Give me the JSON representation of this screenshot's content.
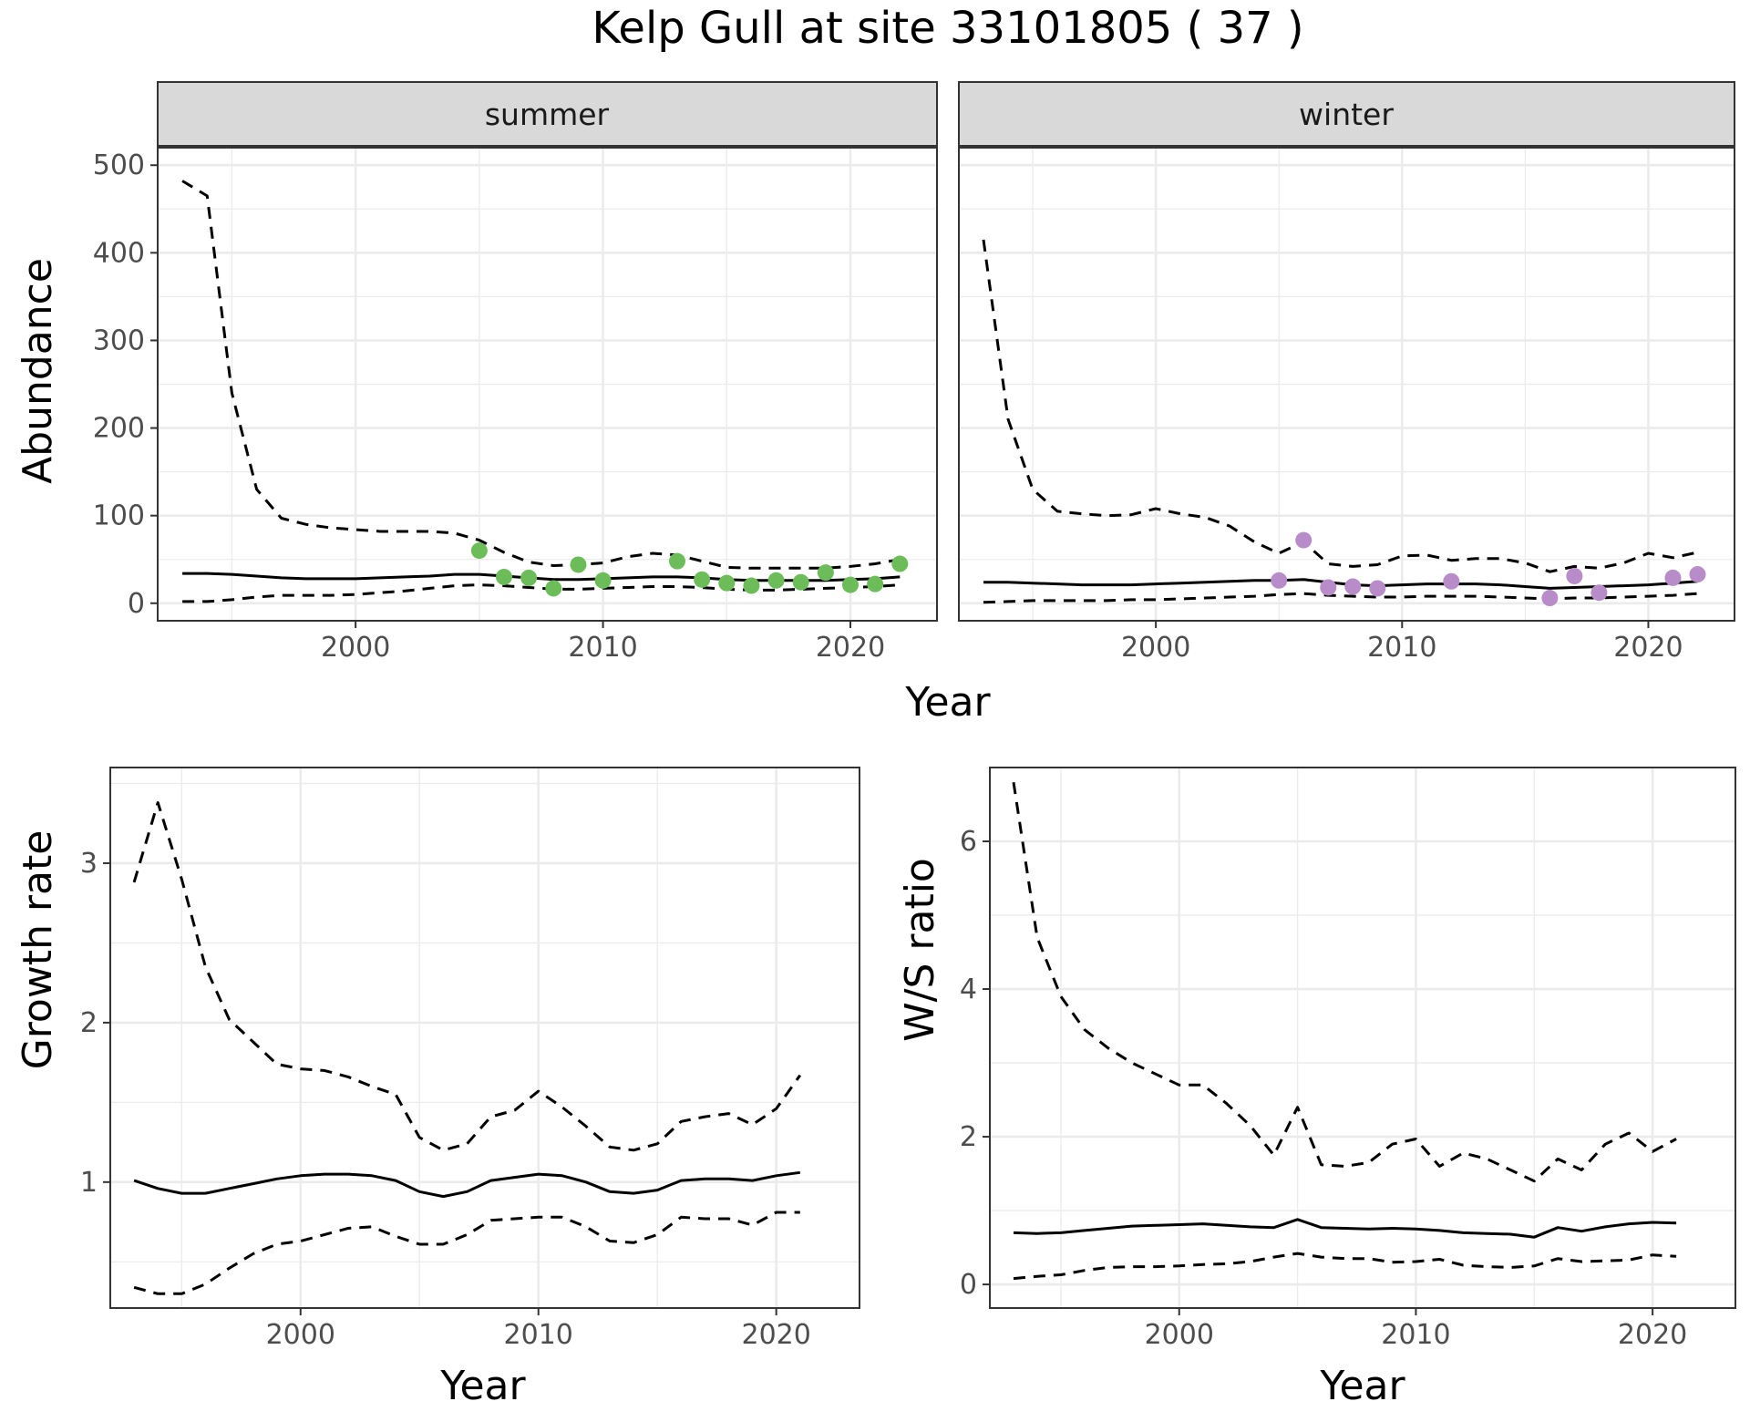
{
  "figure": {
    "title": "Kelp Gull at site 33101805 ( 37 )"
  },
  "colors": {
    "summer_points": "#6cbd5a",
    "winter_points": "#b78cc8",
    "lines": "#000000"
  },
  "chart_data": [
    {
      "type": "line",
      "panel": "summer",
      "strip_label": "summer",
      "xlabel": "Year",
      "ylabel": "Abundance",
      "xlim": [
        1992,
        2023.5
      ],
      "ylim": [
        -20,
        520
      ],
      "x_ticks": [
        2000,
        2010,
        2020
      ],
      "y_ticks": [
        0,
        100,
        200,
        300,
        400,
        500
      ],
      "grid": true,
      "line_styles": {
        "lower": "dashed",
        "mid": "solid",
        "upper": "dashed"
      },
      "x": [
        1993,
        1994,
        1995,
        1996,
        1997,
        1998,
        1999,
        2000,
        2001,
        2002,
        2003,
        2004,
        2005,
        2006,
        2007,
        2008,
        2009,
        2010,
        2011,
        2012,
        2013,
        2014,
        2015,
        2016,
        2017,
        2018,
        2019,
        2020,
        2021,
        2022
      ],
      "series": [
        {
          "values": [
            482,
            465,
            240,
            130,
            97,
            90,
            86,
            84,
            82,
            82,
            82,
            80,
            72,
            58,
            47,
            43,
            44,
            46,
            53,
            57,
            55,
            48,
            41,
            40,
            40,
            40,
            40,
            42,
            45,
            50
          ]
        },
        {
          "values": [
            34,
            34,
            33,
            31,
            29,
            28,
            28,
            28,
            29,
            30,
            31,
            33,
            33,
            31,
            29,
            27,
            27,
            28,
            29,
            30,
            30,
            29,
            27,
            26,
            26,
            26,
            26,
            27,
            28,
            30
          ]
        },
        {
          "values": [
            2,
            2,
            4,
            7,
            9,
            9,
            9,
            10,
            12,
            14,
            17,
            20,
            21,
            20,
            18,
            16,
            16,
            17,
            18,
            19,
            19,
            18,
            16,
            15,
            15,
            16,
            17,
            18,
            19,
            21
          ]
        },
        {
          "name": "",
          "points_x": [
            2005,
            2006,
            2007,
            2008,
            2009,
            2010,
            2013,
            2014,
            2015,
            2016,
            2017,
            2018,
            2019,
            2020,
            2021,
            2022
          ],
          "points_y": [
            60,
            30,
            29,
            17,
            44,
            26,
            48,
            27,
            23,
            20,
            26,
            24,
            35,
            21,
            22,
            45
          ]
        }
      ]
    },
    {
      "type": "line",
      "panel": "winter",
      "strip_label": "winter",
      "xlabel": "Year",
      "ylabel": "Abundance",
      "xlim": [
        1992,
        2023.5
      ],
      "ylim": [
        -20,
        520
      ],
      "x_ticks": [
        2000,
        2010,
        2020
      ],
      "y_ticks": [
        0,
        100,
        200,
        300,
        400,
        500
      ],
      "grid": true,
      "line_styles": {
        "lower": "dashed",
        "mid": "solid",
        "upper": "dashed"
      },
      "x": [
        1993,
        1994,
        1995,
        1996,
        1997,
        1998,
        1999,
        2000,
        2001,
        2002,
        2003,
        2004,
        2005,
        2006,
        2007,
        2008,
        2009,
        2010,
        2011,
        2012,
        2013,
        2014,
        2015,
        2016,
        2017,
        2018,
        2019,
        2020,
        2021,
        2022
      ],
      "series": [
        {
          "values": [
            415,
            210,
            130,
            105,
            102,
            100,
            101,
            108,
            102,
            98,
            88,
            70,
            57,
            70,
            45,
            42,
            44,
            54,
            55,
            49,
            51,
            51,
            46,
            36,
            42,
            40,
            46,
            57,
            52,
            58
          ]
        },
        {
          "values": [
            24,
            24,
            23,
            22,
            21,
            21,
            21,
            22,
            23,
            24,
            25,
            26,
            26,
            27,
            24,
            21,
            20,
            21,
            22,
            22,
            22,
            21,
            19,
            17,
            18,
            19,
            20,
            21,
            23,
            25
          ]
        },
        {
          "values": [
            1,
            2,
            3,
            3,
            3,
            3,
            4,
            4,
            5,
            6,
            7,
            8,
            10,
            11,
            9,
            8,
            7,
            7,
            8,
            8,
            8,
            7,
            6,
            5,
            6,
            6,
            7,
            8,
            9,
            11
          ]
        },
        {
          "name": "",
          "points_x": [
            2005,
            2006,
            2007,
            2008,
            2009,
            2012,
            2016,
            2017,
            2018,
            2021,
            2022
          ],
          "points_y": [
            26,
            72,
            18,
            19,
            17,
            25,
            6,
            31,
            12,
            29,
            33
          ]
        }
      ]
    },
    {
      "type": "line",
      "panel": "growth",
      "xlabel": "Year",
      "ylabel": "Growth rate",
      "xlim": [
        1992,
        2023.5
      ],
      "ylim": [
        0.21,
        3.6
      ],
      "x_ticks": [
        2000,
        2010,
        2020
      ],
      "y_ticks": [
        1,
        2,
        3
      ],
      "grid": true,
      "line_styles": {
        "lower": "dashed",
        "mid": "solid",
        "upper": "dashed"
      },
      "x": [
        1993,
        1994,
        1995,
        1996,
        1997,
        1998,
        1999,
        2000,
        2001,
        2002,
        2003,
        2004,
        2005,
        2006,
        2007,
        2008,
        2009,
        2010,
        2011,
        2012,
        2013,
        2014,
        2015,
        2016,
        2017,
        2018,
        2019,
        2020,
        2021
      ],
      "series": [
        {
          "values": [
            2.88,
            3.38,
            2.9,
            2.35,
            2.02,
            1.88,
            1.74,
            1.71,
            1.7,
            1.66,
            1.6,
            1.55,
            1.28,
            1.2,
            1.24,
            1.41,
            1.45,
            1.57,
            1.47,
            1.35,
            1.22,
            1.2,
            1.24,
            1.38,
            1.41,
            1.43,
            1.36,
            1.46,
            1.67
          ]
        },
        {
          "values": [
            1.01,
            0.96,
            0.93,
            0.93,
            0.96,
            0.99,
            1.02,
            1.04,
            1.05,
            1.05,
            1.04,
            1.01,
            0.94,
            0.91,
            0.94,
            1.01,
            1.03,
            1.05,
            1.04,
            1.0,
            0.94,
            0.93,
            0.95,
            1.01,
            1.02,
            1.02,
            1.01,
            1.04,
            1.06
          ]
        },
        {
          "values": [
            0.34,
            0.3,
            0.3,
            0.36,
            0.46,
            0.55,
            0.61,
            0.63,
            0.67,
            0.71,
            0.72,
            0.66,
            0.61,
            0.61,
            0.67,
            0.76,
            0.77,
            0.78,
            0.78,
            0.72,
            0.63,
            0.62,
            0.67,
            0.78,
            0.77,
            0.77,
            0.73,
            0.81,
            0.81
          ]
        }
      ]
    },
    {
      "type": "line",
      "panel": "ratio",
      "xlabel": "Year",
      "ylabel": "W/S ratio",
      "xlim": [
        1992,
        2023.5
      ],
      "ylim": [
        -0.32,
        7.0
      ],
      "x_ticks": [
        2000,
        2010,
        2020
      ],
      "y_ticks": [
        0,
        2,
        4,
        6
      ],
      "grid": true,
      "line_styles": {
        "lower": "dashed",
        "mid": "solid",
        "upper": "dashed"
      },
      "x": [
        1993,
        1994,
        1995,
        1996,
        1997,
        1998,
        1999,
        2000,
        2001,
        2002,
        2003,
        2004,
        2005,
        2006,
        2007,
        2008,
        2009,
        2010,
        2011,
        2012,
        2013,
        2014,
        2015,
        2016,
        2017,
        2018,
        2019,
        2020,
        2021
      ],
      "series": [
        {
          "values": [
            6.8,
            4.7,
            3.9,
            3.45,
            3.2,
            3.0,
            2.85,
            2.7,
            2.7,
            2.45,
            2.15,
            1.75,
            2.4,
            1.62,
            1.6,
            1.65,
            1.9,
            1.97,
            1.6,
            1.78,
            1.7,
            1.55,
            1.4,
            1.7,
            1.55,
            1.9,
            2.05,
            1.8,
            1.97
          ]
        },
        {
          "values": [
            0.7,
            0.69,
            0.7,
            0.73,
            0.76,
            0.79,
            0.8,
            0.81,
            0.82,
            0.8,
            0.78,
            0.77,
            0.88,
            0.77,
            0.76,
            0.75,
            0.76,
            0.75,
            0.73,
            0.7,
            0.69,
            0.68,
            0.64,
            0.77,
            0.72,
            0.78,
            0.82,
            0.84,
            0.83
          ]
        },
        {
          "values": [
            0.08,
            0.11,
            0.13,
            0.19,
            0.23,
            0.24,
            0.24,
            0.25,
            0.27,
            0.28,
            0.31,
            0.37,
            0.42,
            0.37,
            0.35,
            0.35,
            0.3,
            0.31,
            0.34,
            0.26,
            0.24,
            0.23,
            0.25,
            0.35,
            0.31,
            0.32,
            0.33,
            0.4,
            0.38
          ]
        }
      ]
    }
  ]
}
